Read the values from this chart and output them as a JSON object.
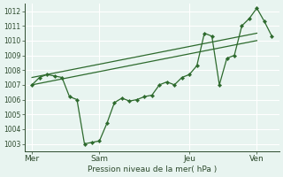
{
  "background_color": "#e8f4f0",
  "grid_color": "#ffffff",
  "line_color": "#2d6a2d",
  "marker_color": "#2d6a2d",
  "xlabel": "Pression niveau de la mer( hPa )",
  "ylim": [
    1002.5,
    1012.5
  ],
  "yticks": [
    1003,
    1004,
    1005,
    1006,
    1007,
    1008,
    1009,
    1010,
    1011,
    1012
  ],
  "xtick_labels": [
    "Mer",
    "Sam",
    "Jeu",
    "Ven"
  ],
  "xtick_positions": [
    0,
    9,
    21,
    30
  ],
  "xlim": [
    -1,
    33
  ],
  "vline_positions": [
    0,
    9,
    21,
    30
  ],
  "series1_x": [
    0,
    1,
    2,
    3,
    4,
    5,
    6,
    7,
    8,
    9,
    10,
    11,
    12,
    13,
    14,
    15,
    16,
    17,
    18,
    19,
    20,
    21,
    22,
    23,
    24,
    25,
    26,
    27,
    28,
    29,
    30,
    31,
    32
  ],
  "series1_y": [
    1007.0,
    1007.5,
    1007.7,
    1007.6,
    1007.5,
    1006.2,
    1006.0,
    1003.0,
    1003.1,
    1003.2,
    1004.4,
    1005.8,
    1006.1,
    1005.9,
    1006.0,
    1006.2,
    1006.3,
    1007.0,
    1007.2,
    1007.0,
    1007.5,
    1007.7,
    1008.3,
    1010.5,
    1010.3,
    1007.0,
    1008.8,
    1009.0,
    1011.0,
    1011.5,
    1012.2,
    1011.3,
    1010.3
  ],
  "series2_x": [
    0,
    30
  ],
  "series2_y": [
    1007.0,
    1010.0
  ],
  "series3_x": [
    0,
    30
  ],
  "series3_y": [
    1007.5,
    1010.5
  ]
}
